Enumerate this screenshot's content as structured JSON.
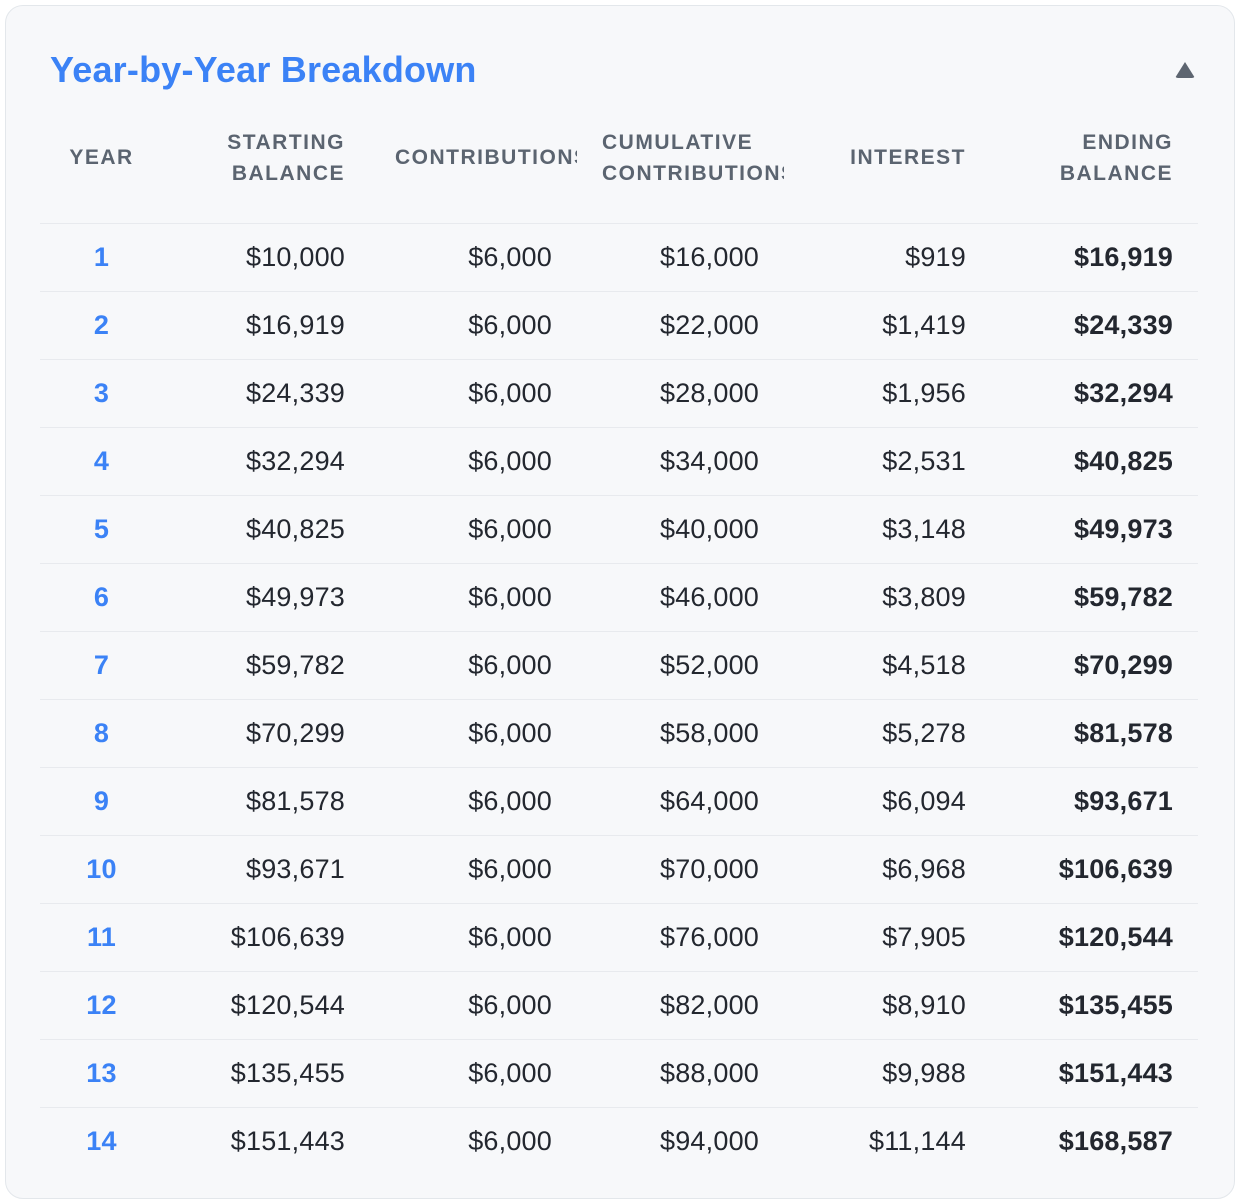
{
  "card": {
    "title": "Year-by-Year Breakdown",
    "collapse_icon": "triangle-up",
    "colors": {
      "accent": "#3b82f6",
      "header_text": "#5b6470",
      "body_text": "#23272f",
      "card_background": "#f7f8fa",
      "card_border": "#e3e7eb",
      "row_separator": "#e8eaee",
      "icon": "#5d6570"
    }
  },
  "table": {
    "columns": [
      {
        "key": "year",
        "label": "YEAR"
      },
      {
        "key": "starting",
        "label": "STARTING BALANCE"
      },
      {
        "key": "contribution",
        "label": "CONTRIBUTIONS"
      },
      {
        "key": "cumulative",
        "label": "CUMULATIVE CONTRIBUTIONS"
      },
      {
        "key": "interest",
        "label": "INTEREST"
      },
      {
        "key": "ending",
        "label": "ENDING BALANCE"
      }
    ],
    "rows": [
      {
        "year": "1",
        "starting": "$10,000",
        "contribution": "$6,000",
        "cumulative": "$16,000",
        "interest": "$919",
        "ending": "$16,919"
      },
      {
        "year": "2",
        "starting": "$16,919",
        "contribution": "$6,000",
        "cumulative": "$22,000",
        "interest": "$1,419",
        "ending": "$24,339"
      },
      {
        "year": "3",
        "starting": "$24,339",
        "contribution": "$6,000",
        "cumulative": "$28,000",
        "interest": "$1,956",
        "ending": "$32,294"
      },
      {
        "year": "4",
        "starting": "$32,294",
        "contribution": "$6,000",
        "cumulative": "$34,000",
        "interest": "$2,531",
        "ending": "$40,825"
      },
      {
        "year": "5",
        "starting": "$40,825",
        "contribution": "$6,000",
        "cumulative": "$40,000",
        "interest": "$3,148",
        "ending": "$49,973"
      },
      {
        "year": "6",
        "starting": "$49,973",
        "contribution": "$6,000",
        "cumulative": "$46,000",
        "interest": "$3,809",
        "ending": "$59,782"
      },
      {
        "year": "7",
        "starting": "$59,782",
        "contribution": "$6,000",
        "cumulative": "$52,000",
        "interest": "$4,518",
        "ending": "$70,299"
      },
      {
        "year": "8",
        "starting": "$70,299",
        "contribution": "$6,000",
        "cumulative": "$58,000",
        "interest": "$5,278",
        "ending": "$81,578"
      },
      {
        "year": "9",
        "starting": "$81,578",
        "contribution": "$6,000",
        "cumulative": "$64,000",
        "interest": "$6,094",
        "ending": "$93,671"
      },
      {
        "year": "10",
        "starting": "$93,671",
        "contribution": "$6,000",
        "cumulative": "$70,000",
        "interest": "$6,968",
        "ending": "$106,639"
      },
      {
        "year": "11",
        "starting": "$106,639",
        "contribution": "$6,000",
        "cumulative": "$76,000",
        "interest": "$7,905",
        "ending": "$120,544"
      },
      {
        "year": "12",
        "starting": "$120,544",
        "contribution": "$6,000",
        "cumulative": "$82,000",
        "interest": "$8,910",
        "ending": "$135,455"
      },
      {
        "year": "13",
        "starting": "$135,455",
        "contribution": "$6,000",
        "cumulative": "$88,000",
        "interest": "$9,988",
        "ending": "$151,443"
      },
      {
        "year": "14",
        "starting": "$151,443",
        "contribution": "$6,000",
        "cumulative": "$94,000",
        "interest": "$11,144",
        "ending": "$168,587"
      }
    ]
  }
}
